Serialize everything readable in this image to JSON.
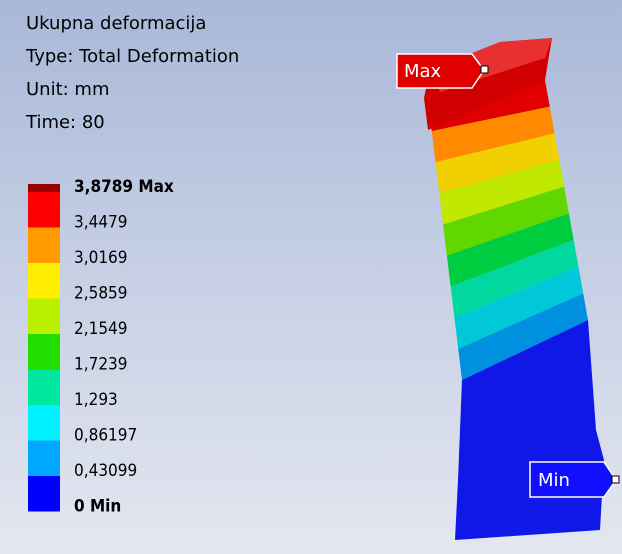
{
  "header": {
    "lines": [
      "Ukupna deformacija",
      "Type: Total Deformation",
      "Unit: mm",
      "Time: 80"
    ]
  },
  "legend": {
    "labels": [
      "3,8789 Max",
      "3,4479",
      "3,0169",
      "2,5859",
      "2,1549",
      "1,7239",
      "1,293",
      "0,86197",
      "0,43099",
      "0 Min"
    ]
  },
  "markers": {
    "max": "Max",
    "min": "Min"
  }
}
